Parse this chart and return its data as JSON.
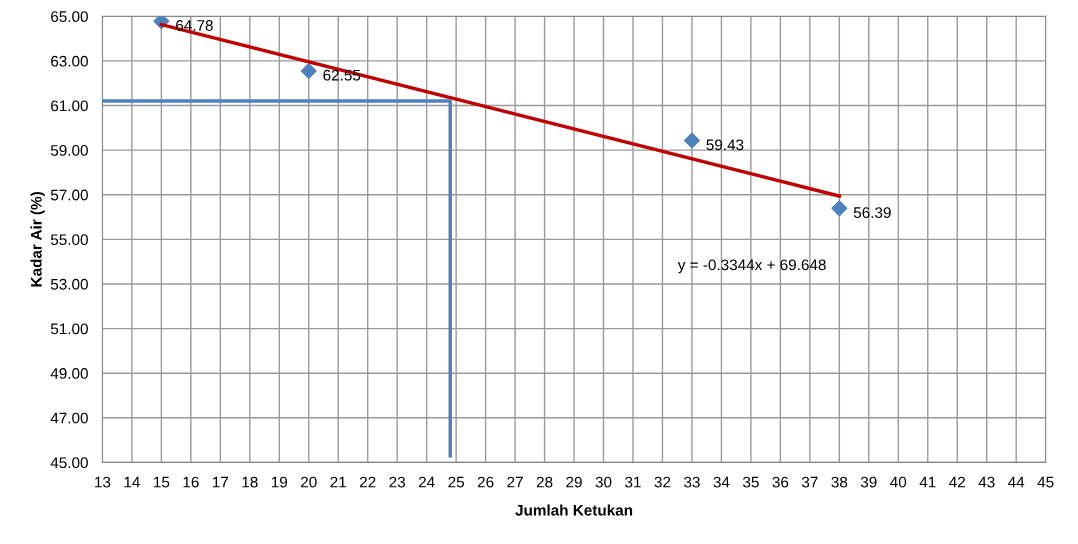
{
  "chart_data": {
    "type": "scatter",
    "xlabel": "Jumlah Ketukan",
    "ylabel": "Kadar Air (%)",
    "x": [
      15,
      20,
      33,
      38
    ],
    "series": [
      {
        "color": "#4f81bd",
        "values": [
          64.78,
          62.55,
          59.43,
          56.39
        ],
        "marker": "diamond",
        "data_labels": true
      },
      {
        "type": "line",
        "color": "#c00000",
        "x": [
          15,
          38
        ],
        "values": [
          64.63,
          56.94
        ],
        "marker": "none"
      },
      {
        "type": "line",
        "color": "#4f81bd",
        "x": [
          13,
          24.8,
          24.8
        ],
        "values": [
          61.2,
          61.2,
          45.3
        ],
        "marker": "none"
      }
    ],
    "annotations": [
      "y = -0.3344x + 69.648"
    ],
    "xlim": [
      13,
      45
    ],
    "xticks": [
      13,
      14,
      15,
      16,
      17,
      18,
      19,
      20,
      21,
      22,
      23,
      24,
      25,
      26,
      27,
      28,
      29,
      30,
      31,
      32,
      33,
      34,
      35,
      36,
      37,
      38,
      39,
      40,
      41,
      42,
      43,
      44,
      45
    ],
    "ylim": [
      45,
      65
    ],
    "yticks": [
      {
        "value": 45,
        "label": "45.00"
      },
      {
        "value": 47,
        "label": "47.00"
      },
      {
        "value": 49,
        "label": "49.00"
      },
      {
        "value": 51,
        "label": "51.00"
      },
      {
        "value": 53,
        "label": "53.00"
      },
      {
        "value": 55,
        "label": "55.00"
      },
      {
        "value": 57,
        "label": "57.00"
      },
      {
        "value": 59,
        "label": "59.00"
      },
      {
        "value": 61,
        "label": "61.00"
      },
      {
        "value": 63,
        "label": "63.00"
      },
      {
        "value": 65,
        "label": "65.00"
      }
    ],
    "grid": true,
    "legend": false
  }
}
